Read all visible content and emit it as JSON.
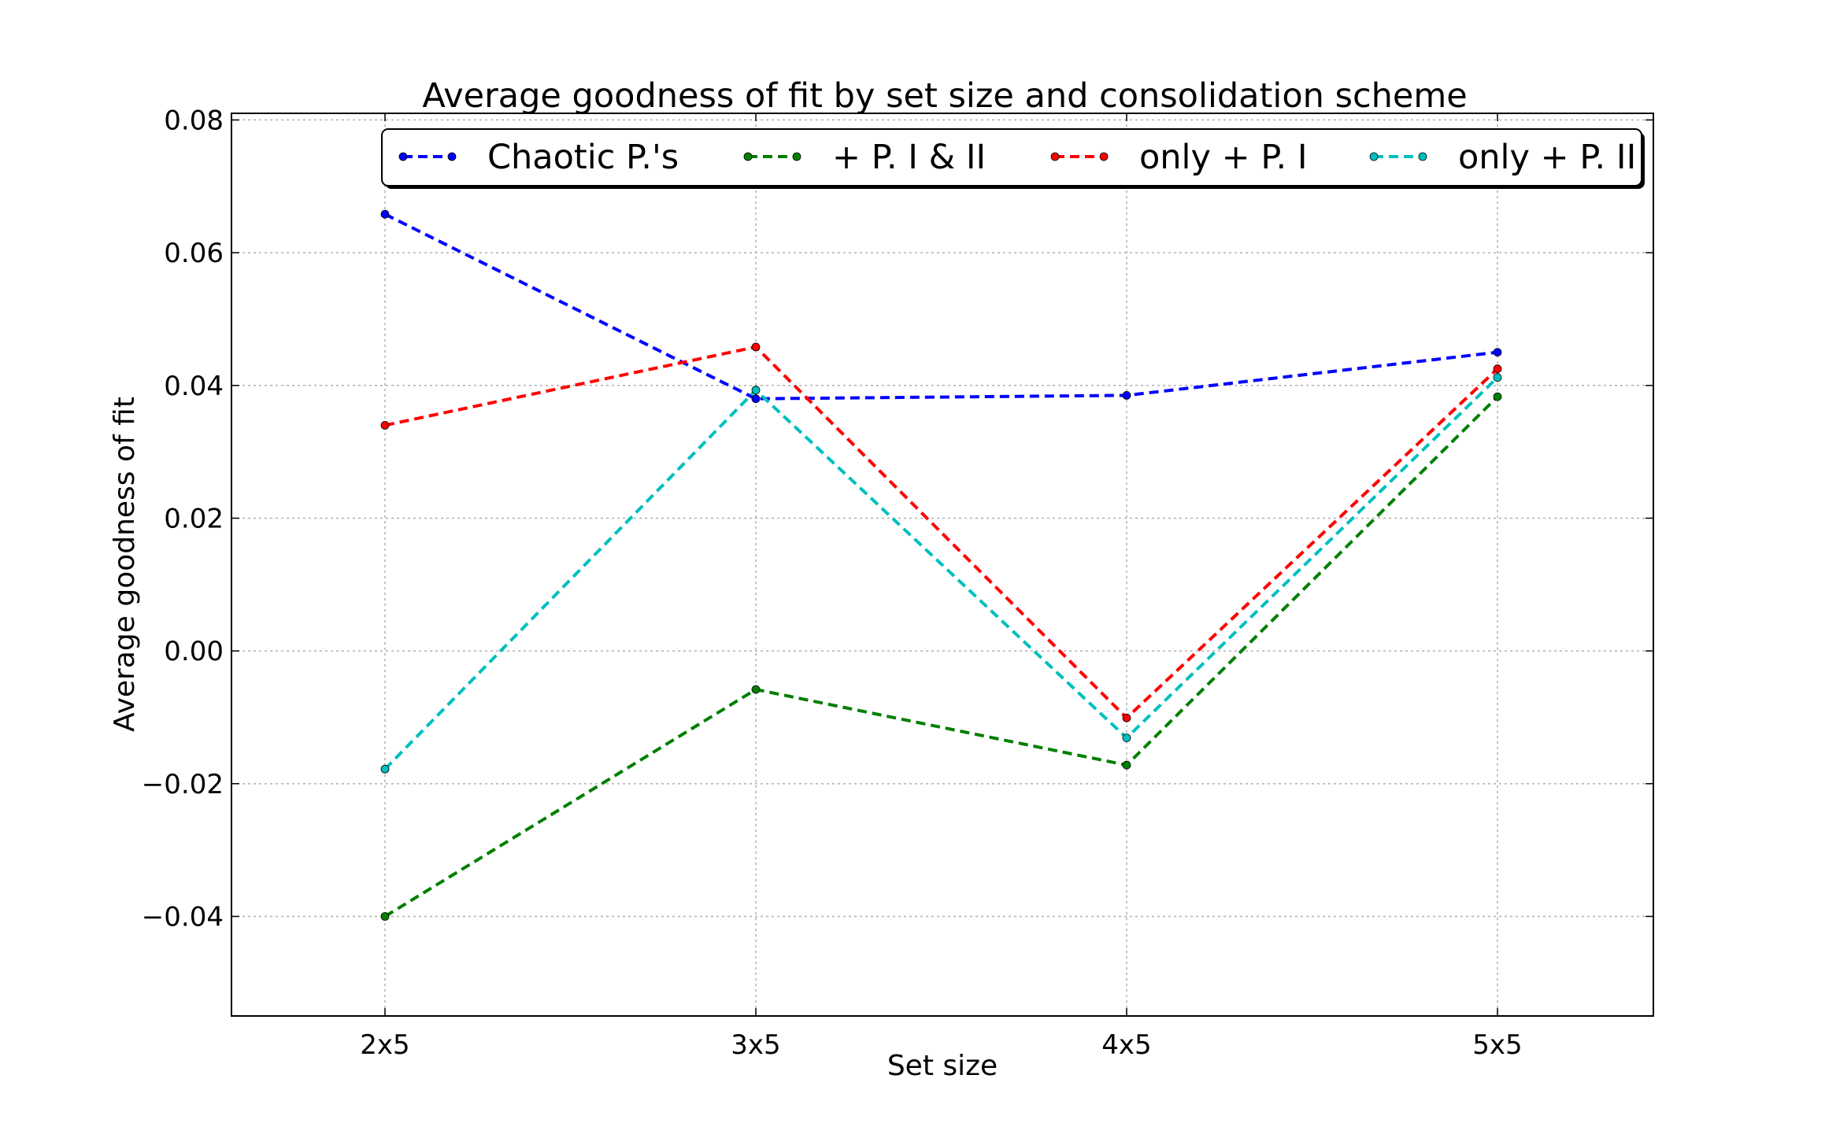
{
  "chart_data": {
    "type": "line",
    "title": "Average goodness of fit by set size and consolidation scheme",
    "xlabel": "Set size",
    "ylabel": "Average goodness of fit",
    "categories": [
      "2x5",
      "3x5",
      "4x5",
      "5x5"
    ],
    "ylim": [
      -0.055,
      0.081
    ],
    "yticks": [
      -0.04,
      -0.02,
      0.0,
      0.02,
      0.04,
      0.06,
      0.08
    ],
    "ytick_labels": [
      "−0.04",
      "−0.02",
      "0.00",
      "0.02",
      "0.04",
      "0.06",
      "0.08"
    ],
    "grid": true,
    "legend_position": "top",
    "series": [
      {
        "name": "Chaotic P.'s",
        "color": "#0000ff",
        "values": [
          0.0658,
          0.038,
          0.0385,
          0.045
        ]
      },
      {
        "name": "+ P. I & II",
        "color": "#007f00",
        "values": [
          -0.04,
          -0.0058,
          -0.0172,
          0.0383
        ]
      },
      {
        "name": "only + P. I",
        "color": "#ff0000",
        "values": [
          0.034,
          0.0458,
          -0.0101,
          0.0425
        ]
      },
      {
        "name": "only + P. II",
        "color": "#00bfbf",
        "values": [
          -0.0178,
          0.0393,
          -0.0131,
          0.0412
        ]
      }
    ]
  }
}
